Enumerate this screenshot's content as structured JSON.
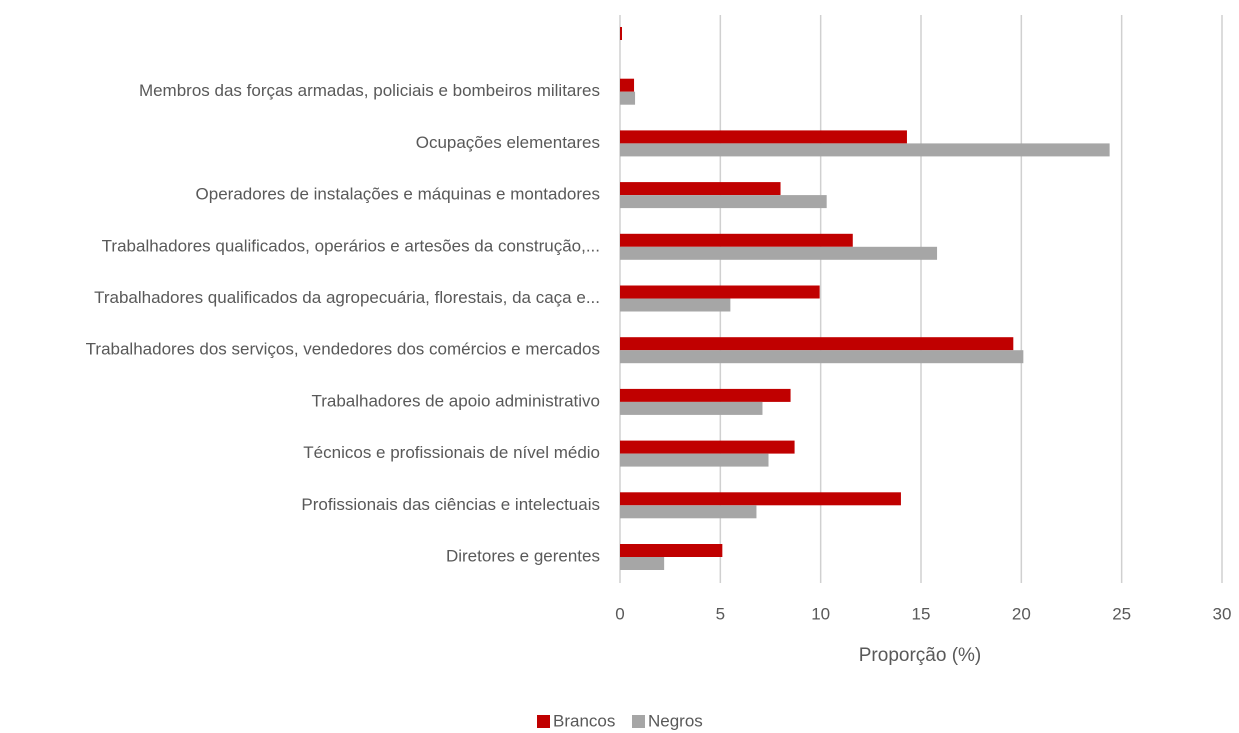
{
  "chart_data": {
    "type": "bar",
    "orientation": "horizontal",
    "categories": [
      null,
      "Membros das forças armadas, policiais e bombeiros militares",
      "Ocupações elementares",
      "Operadores de instalações e máquinas e montadores",
      "Trabalhadores qualificados, operários e artesões da construção,...",
      "Trabalhadores qualificados da agropecuária, florestais, da caça e...",
      "Trabalhadores dos serviços, vendedores dos comércios e mercados",
      "Trabalhadores de apoio administrativo",
      "Técnicos e profissionais de nível médio",
      "Profissionais das ciências e intelectuais",
      "Diretores e gerentes"
    ],
    "series": [
      {
        "name": "Brancos",
        "color": "#c00000",
        "values": [
          0.1,
          0.7,
          14.3,
          8.0,
          11.6,
          9.95,
          19.6,
          8.5,
          8.7,
          14.0,
          5.1
        ]
      },
      {
        "name": "Negros",
        "color": "#a6a6a6",
        "values": [
          0,
          0.75,
          24.4,
          10.3,
          15.8,
          5.5,
          20.1,
          7.1,
          7.4,
          6.8,
          2.2
        ]
      }
    ],
    "xlim": [
      0,
      30
    ],
    "xticks": [
      0,
      5,
      10,
      15,
      20,
      25,
      30
    ],
    "xlabel": "Proporção (%)",
    "grid": true,
    "legend": "bottom"
  }
}
